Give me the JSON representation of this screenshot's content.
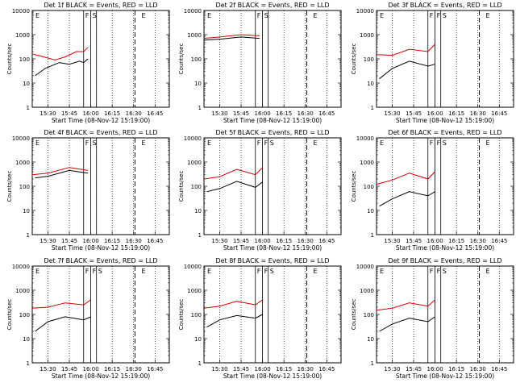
{
  "chart_data": [
    {
      "type": "line",
      "title": "Det 1f BLACK = Events, RED = LLD",
      "xlabel": "Start Time (08-Nov-12 15:19:00)",
      "ylabel": "Counts/sec",
      "yscale": "log",
      "xticklabels": [
        "15:30",
        "15:45",
        "16:00",
        "16:15",
        "16:30",
        "16:45"
      ],
      "yticklabels": [
        "1",
        "10",
        "100",
        "1000",
        "10000"
      ],
      "annotations": [
        "E",
        "F",
        "S",
        "E"
      ],
      "series": [
        {
          "color": "#d40000",
          "x": [
            "15:19",
            "15:25",
            "15:35",
            "15:42",
            "15:50",
            "15:55",
            "15:58"
          ],
          "y": [
            160,
            130,
            90,
            120,
            200,
            200,
            300
          ]
        },
        {
          "color": "#000000",
          "x": [
            "15:21",
            "15:28",
            "15:38",
            "15:45",
            "15:52",
            "15:55",
            "15:58"
          ],
          "y": [
            20,
            40,
            70,
            60,
            80,
            70,
            100
          ]
        }
      ]
    },
    {
      "type": "line",
      "title": "Det 2f BLACK = Events, RED = LLD",
      "xlabel": "Start Time (08-Nov-12 15:19:00)",
      "ylabel": "Counts/sec",
      "yscale": "log",
      "xticklabels": [
        "15:30",
        "15:45",
        "16:00",
        "16:15",
        "16:30",
        "16:45"
      ],
      "yticklabels": [
        "1",
        "10",
        "100",
        "1000",
        "10000"
      ],
      "annotations": [
        "E",
        "F",
        "S",
        "E"
      ],
      "series": [
        {
          "color": "#d40000",
          "x": [
            "15:19",
            "15:30",
            "15:45",
            "15:58"
          ],
          "y": [
            700,
            800,
            1000,
            900
          ]
        },
        {
          "color": "#000000",
          "x": [
            "15:19",
            "15:30",
            "15:45",
            "15:58"
          ],
          "y": [
            600,
            650,
            800,
            700
          ]
        }
      ]
    },
    {
      "type": "line",
      "title": "Det 3f BLACK = Events, RED = LLD",
      "xlabel": "Start Time (08-Nov-12 15:19:00)",
      "ylabel": "Counts/sec",
      "yscale": "log",
      "xticklabels": [
        "15:30",
        "15:45",
        "16:00",
        "16:15",
        "16:30",
        "16:45"
      ],
      "yticklabels": [
        "1",
        "10",
        "100",
        "1000",
        "10000"
      ],
      "annotations": [
        "E",
        "F",
        "F",
        "S",
        "E"
      ],
      "series": [
        {
          "color": "#d40000",
          "x": [
            "15:19",
            "15:30",
            "15:42",
            "15:55",
            "16:00"
          ],
          "y": [
            150,
            140,
            250,
            200,
            400
          ]
        },
        {
          "color": "#000000",
          "x": [
            "15:21",
            "15:30",
            "15:42",
            "15:55",
            "16:00"
          ],
          "y": [
            15,
            40,
            80,
            50,
            60
          ]
        }
      ]
    },
    {
      "type": "line",
      "title": "Det 4f BLACK = Events, RED = LLD",
      "xlabel": "Start Time (08-Nov-12 15:19:00)",
      "ylabel": "Counts/sec",
      "yscale": "log",
      "xticklabels": [
        "15:30",
        "15:45",
        "16:00",
        "16:15",
        "16:30",
        "16:45"
      ],
      "yticklabels": [
        "1",
        "10",
        "100",
        "1000",
        "10000"
      ],
      "annotations": [
        "E",
        "F",
        "S",
        "E"
      ],
      "series": [
        {
          "color": "#d40000",
          "x": [
            "15:19",
            "15:30",
            "15:45",
            "15:58"
          ],
          "y": [
            300,
            350,
            600,
            450
          ]
        },
        {
          "color": "#000000",
          "x": [
            "15:21",
            "15:30",
            "15:45",
            "15:58"
          ],
          "y": [
            220,
            260,
            450,
            350
          ]
        }
      ]
    },
    {
      "type": "line",
      "title": "Det 5f BLACK = Events, RED = LLD",
      "xlabel": "Start Time (08-Nov-12 15:19:00)",
      "ylabel": "Counts/sec",
      "yscale": "log",
      "xticklabels": [
        "15:30",
        "15:45",
        "16:00",
        "16:15",
        "16:30",
        "16:45"
      ],
      "yticklabels": [
        "1",
        "10",
        "100",
        "1000",
        "10000"
      ],
      "annotations": [
        "E",
        "F",
        "F",
        "S",
        "E"
      ],
      "series": [
        {
          "color": "#d40000",
          "x": [
            "15:19",
            "15:30",
            "15:42",
            "15:55",
            "16:00"
          ],
          "y": [
            200,
            250,
            500,
            300,
            600
          ]
        },
        {
          "color": "#000000",
          "x": [
            "15:21",
            "15:30",
            "15:42",
            "15:55",
            "16:00"
          ],
          "y": [
            60,
            80,
            160,
            90,
            150
          ]
        }
      ]
    },
    {
      "type": "line",
      "title": "Det 6f BLACK = Events, RED = LLD",
      "xlabel": "Start Time (08-Nov-12 15:19:00)",
      "ylabel": "Counts/sec",
      "yscale": "log",
      "xticklabels": [
        "15:30",
        "15:45",
        "16:00",
        "16:15",
        "16:30",
        "16:45"
      ],
      "yticklabels": [
        "1",
        "10",
        "100",
        "1000",
        "10000"
      ],
      "annotations": [
        "E",
        "F",
        "F",
        "S",
        "E"
      ],
      "series": [
        {
          "color": "#d40000",
          "x": [
            "15:19",
            "15:30",
            "15:42",
            "15:55",
            "16:00"
          ],
          "y": [
            120,
            180,
            350,
            200,
            400
          ]
        },
        {
          "color": "#000000",
          "x": [
            "15:21",
            "15:30",
            "15:42",
            "15:55",
            "16:00"
          ],
          "y": [
            15,
            30,
            60,
            40,
            60
          ]
        }
      ]
    },
    {
      "type": "line",
      "title": "Det 7f BLACK = Events, RED = LLD",
      "xlabel": "Start Time (08-Nov-12 15:19:00)",
      "ylabel": "Counts/sec",
      "yscale": "log",
      "xticklabels": [
        "15:30",
        "15:45",
        "16:00",
        "16:15",
        "16:30",
        "16:45"
      ],
      "yticklabels": [
        "1",
        "10",
        "100",
        "1000",
        "10000"
      ],
      "annotations": [
        "E",
        "F",
        "F",
        "S",
        "E"
      ],
      "series": [
        {
          "color": "#d40000",
          "x": [
            "15:19",
            "15:30",
            "15:42",
            "15:55",
            "16:00"
          ],
          "y": [
            180,
            200,
            300,
            250,
            400
          ]
        },
        {
          "color": "#000000",
          "x": [
            "15:21",
            "15:30",
            "15:42",
            "15:55",
            "16:00"
          ],
          "y": [
            20,
            50,
            80,
            60,
            80
          ]
        }
      ]
    },
    {
      "type": "line",
      "title": "Det 8f BLACK = Events, RED = LLD",
      "xlabel": "Start Time (08-Nov-12 15:19:00)",
      "ylabel": "Counts/sec",
      "yscale": "log",
      "xticklabels": [
        "15:30",
        "15:45",
        "16:00",
        "16:15",
        "16:30",
        "16:45"
      ],
      "yticklabels": [
        "1",
        "10",
        "100",
        "1000",
        "10000"
      ],
      "annotations": [
        "E",
        "F",
        "F",
        "S",
        "E"
      ],
      "series": [
        {
          "color": "#d40000",
          "x": [
            "15:19",
            "15:30",
            "15:42",
            "15:55",
            "16:00"
          ],
          "y": [
            180,
            220,
            350,
            250,
            400
          ]
        },
        {
          "color": "#000000",
          "x": [
            "15:21",
            "15:30",
            "15:42",
            "15:55",
            "16:00"
          ],
          "y": [
            30,
            60,
            90,
            70,
            100
          ]
        }
      ]
    },
    {
      "type": "line",
      "title": "Det 9f BLACK = Events, RED = LLD",
      "xlabel": "Start Time (08-Nov-12 15:19:00)",
      "ylabel": "Counts/sec",
      "yscale": "log",
      "xticklabels": [
        "15:30",
        "15:45",
        "16:00",
        "16:15",
        "16:30",
        "16:45"
      ],
      "yticklabels": [
        "1",
        "10",
        "100",
        "1000",
        "10000"
      ],
      "annotations": [
        "E",
        "F",
        "F",
        "S",
        "E"
      ],
      "series": [
        {
          "color": "#d40000",
          "x": [
            "15:19",
            "15:30",
            "15:42",
            "15:55",
            "16:00"
          ],
          "y": [
            150,
            180,
            300,
            220,
            400
          ]
        },
        {
          "color": "#000000",
          "x": [
            "15:21",
            "15:30",
            "15:42",
            "15:55",
            "16:00"
          ],
          "y": [
            20,
            40,
            70,
            50,
            80
          ]
        }
      ]
    }
  ]
}
